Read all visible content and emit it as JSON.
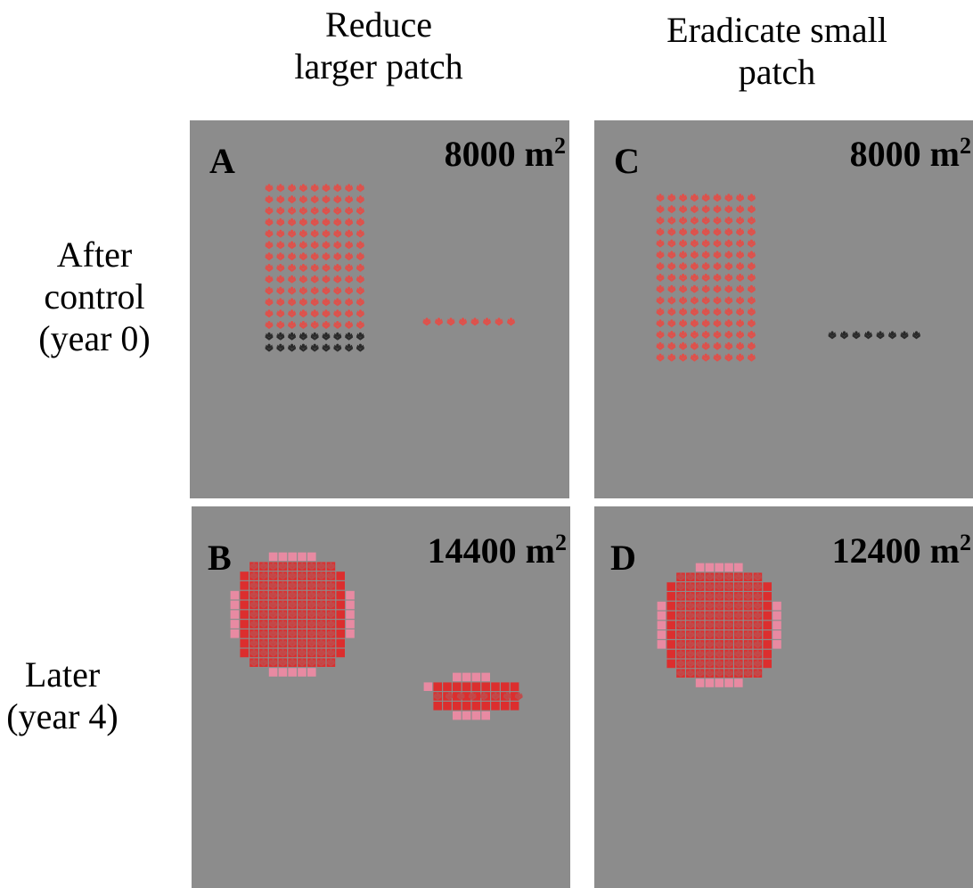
{
  "columns": [
    {
      "title": "Reduce\nlarger patch"
    },
    {
      "title": "Eradicate small\npatch"
    }
  ],
  "rows": [
    {
      "title": "After\ncontrol\n(year 0)"
    },
    {
      "title": "Later\n(year 4)"
    }
  ],
  "panels": {
    "A": {
      "letter": "A",
      "area_value": "8000 m",
      "area_unit_exp": "2"
    },
    "B": {
      "letter": "B",
      "area_value": "14400 m",
      "area_unit_exp": "2"
    },
    "C": {
      "letter": "C",
      "area_value": "8000 m",
      "area_unit_exp": "2"
    },
    "D": {
      "letter": "D",
      "area_value": "12400 m",
      "area_unit_exp": "2"
    }
  },
  "colors": {
    "panel_bg": "#8c8c8c",
    "weed_alive": "#e0504a",
    "weed_killed": "#2a2a2a",
    "cell_core": "#dc2e2e",
    "cell_edge": "#e88aa2",
    "weed_on_cell": "#c24a4a"
  },
  "icons": {
    "weed": "weed-plant-icon",
    "cell": "infested-cell-square"
  }
}
